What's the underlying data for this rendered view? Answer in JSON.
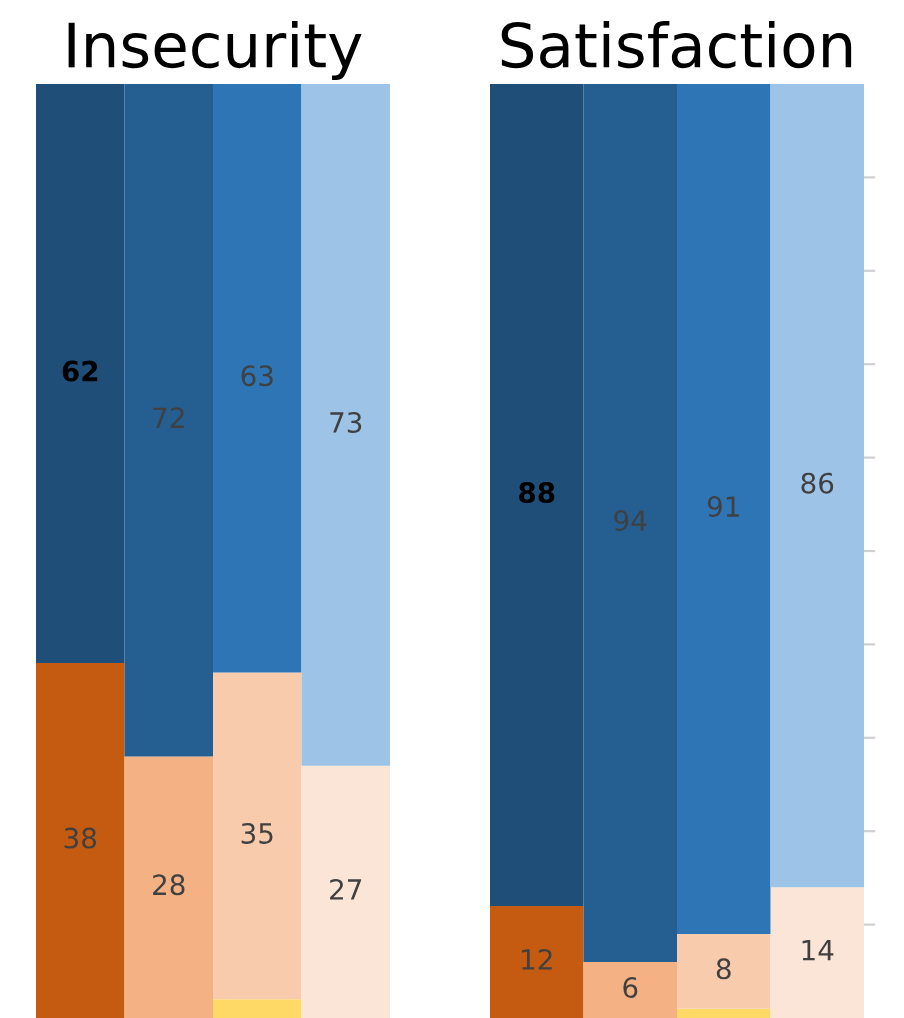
{
  "chart_data": [
    {
      "type": "bar",
      "title": "Insecurity",
      "stacked": true,
      "categories": [
        null,
        null,
        null,
        null
      ],
      "ylim": [
        0,
        100
      ],
      "series": [
        {
          "colors": [
            "#c55a11",
            "#f4b183",
            "#ffd966",
            "#fbe5d6"
          ],
          "values": [
            null,
            null,
            2,
            null
          ],
          "value_labels": [
            null,
            null,
            null,
            null
          ]
        },
        {
          "colors": [
            "#c55a11",
            "#f4b183",
            "#f8cbad",
            "#fbe5d6"
          ],
          "values": [
            38,
            28,
            35,
            27
          ],
          "value_labels": [
            "38",
            "28",
            "35",
            "27"
          ]
        },
        {
          "colors": [
            "#1f4e79",
            "#255e91",
            "#2e75b6",
            "#9dc3e6"
          ],
          "values": [
            62,
            72,
            63,
            73
          ],
          "value_labels": [
            "62",
            "72",
            "63",
            "73"
          ]
        }
      ]
    },
    {
      "type": "bar",
      "title": "Satisfaction",
      "stacked": true,
      "categories": [
        null,
        null,
        null,
        null
      ],
      "ylim": [
        0,
        100
      ],
      "yticks": [
        {
          "value": 10,
          "label": null
        },
        {
          "value": 20,
          "label": null
        },
        {
          "value": 30,
          "label": null
        },
        {
          "value": 40,
          "label": null
        },
        {
          "value": 50,
          "label": null
        },
        {
          "value": 60,
          "label": null
        },
        {
          "value": 70,
          "label": null
        },
        {
          "value": 80,
          "label": null
        },
        {
          "value": 90,
          "label": null
        }
      ],
      "series": [
        {
          "colors": [
            "#c55a11",
            "#f4b183",
            "#ffd966",
            "#fbe5d6"
          ],
          "values": [
            null,
            null,
            1,
            null
          ],
          "value_labels": [
            null,
            null,
            null,
            null
          ]
        },
        {
          "colors": [
            "#c55a11",
            "#f4b183",
            "#f8cbad",
            "#fbe5d6"
          ],
          "values": [
            12,
            6,
            8,
            14
          ],
          "value_labels": [
            "12",
            "6",
            "8",
            "14"
          ]
        },
        {
          "colors": [
            "#1f4e79",
            "#255e91",
            "#2e75b6",
            "#9dc3e6"
          ],
          "values": [
            88,
            94,
            91,
            86
          ],
          "value_labels": [
            "88",
            "94",
            "91",
            "86"
          ]
        }
      ]
    }
  ]
}
